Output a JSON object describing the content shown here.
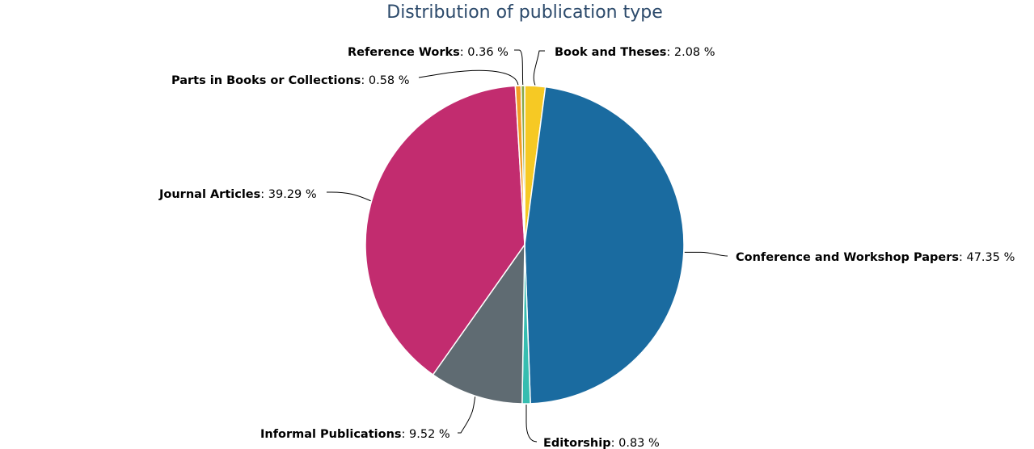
{
  "chart_data": {
    "type": "pie",
    "title": "Distribution of publication type",
    "slices": [
      {
        "label": "Book and Theses",
        "value": 2.08,
        "value_text": "2.08 %",
        "color": "#f6c924"
      },
      {
        "label": "Conference and Workshop Papers",
        "value": 47.35,
        "value_text": "47.35 %",
        "color": "#1a6ba0"
      },
      {
        "label": "Editorship",
        "value": 0.83,
        "value_text": "0.83 %",
        "color": "#36bdb0"
      },
      {
        "label": "Informal Publications",
        "value": 9.52,
        "value_text": "9.52 %",
        "color": "#5f6b72"
      },
      {
        "label": "Journal Articles",
        "value": 39.29,
        "value_text": "39.29 %",
        "color": "#c22c6f"
      },
      {
        "label": "Parts in Books or Collections",
        "value": 0.58,
        "value_text": "0.58 %",
        "color": "#f39c26"
      },
      {
        "label": "Reference Works",
        "value": 0.36,
        "value_text": "0.36 %",
        "color": "#8aa848"
      }
    ]
  }
}
